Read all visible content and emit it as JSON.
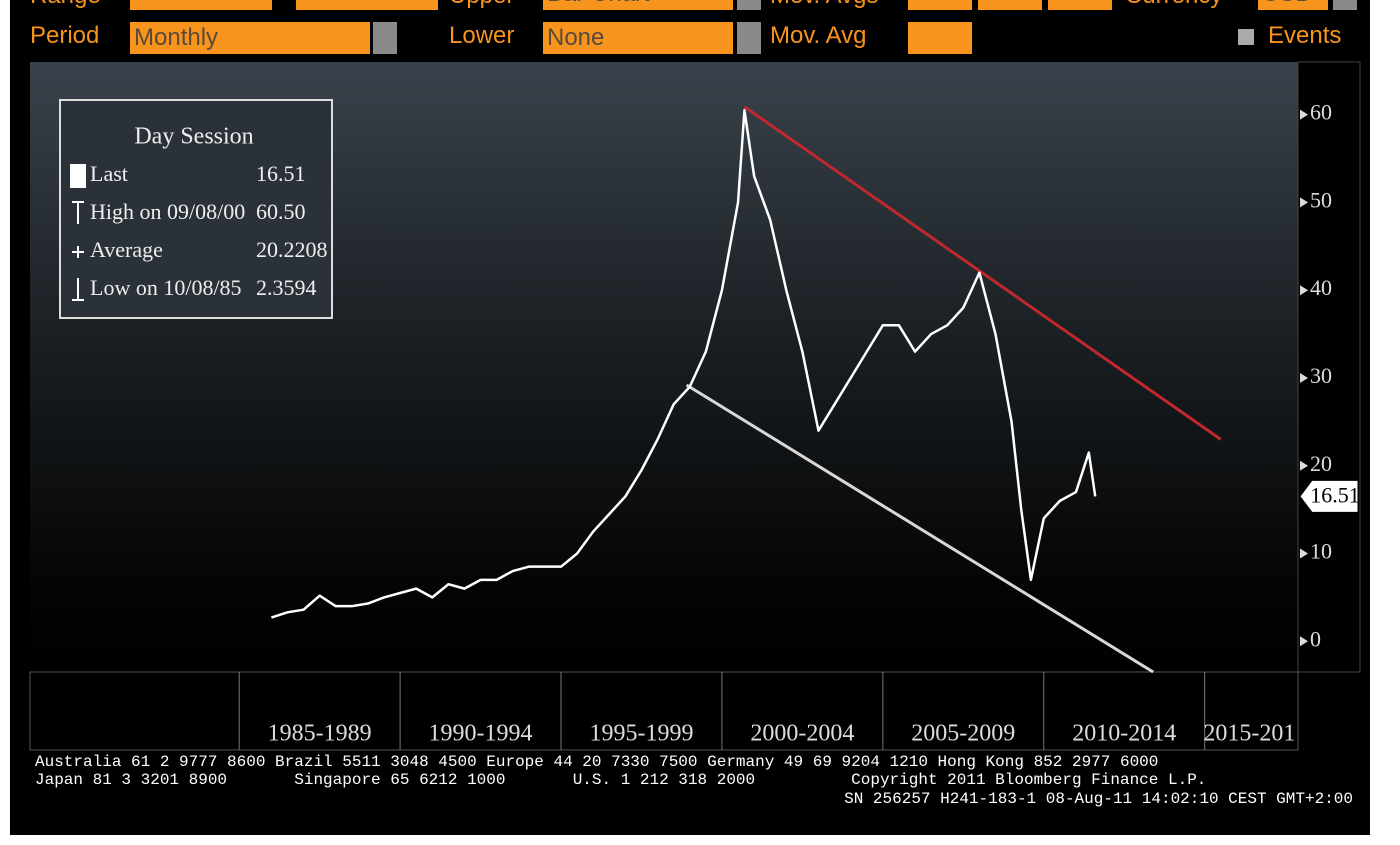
{
  "toolbar": {
    "row1": [
      "Range",
      "Upper",
      "Bar Chart",
      "Mov. Avgs",
      "Currency",
      "USD"
    ],
    "period_label": "Period",
    "period_value": "Monthly",
    "lower_label": "Lower",
    "lower_value": "None",
    "mov_avg_label": "Mov. Avg",
    "events": "Events"
  },
  "legend": {
    "title": "Day Session",
    "rows": [
      [
        "Last",
        "16.51"
      ],
      [
        "High on 09/08/00",
        "60.50"
      ],
      [
        "Average",
        "20.2208"
      ],
      [
        "Low on 10/08/85",
        "2.3594"
      ]
    ]
  },
  "chart_data": {
    "type": "line",
    "x": [
      1986.0,
      1986.5,
      1987.0,
      1987.5,
      1988.0,
      1988.5,
      1989.0,
      1989.5,
      1990.0,
      1990.5,
      1991.0,
      1991.5,
      1992.0,
      1992.5,
      1993.0,
      1993.5,
      1994.0,
      1994.5,
      1995.0,
      1995.5,
      1996.0,
      1996.5,
      1997.0,
      1997.5,
      1998.0,
      1998.5,
      1999.0,
      1999.5,
      2000.0,
      2000.5,
      2000.7,
      2001.0,
      2001.5,
      2002.0,
      2002.5,
      2003.0,
      2003.5,
      2004.0,
      2004.5,
      2005.0,
      2005.5,
      2006.0,
      2006.5,
      2007.0,
      2007.5,
      2008.0,
      2008.5,
      2009.0,
      2009.3,
      2009.6,
      2010.0,
      2010.5,
      2011.0,
      2011.4,
      2011.6
    ],
    "series": [
      {
        "color": "#ffffff",
        "values": [
          2.7,
          3.3,
          3.6,
          5.2,
          4.0,
          4.0,
          4.3,
          5.0,
          5.5,
          6.0,
          5.0,
          6.5,
          6.0,
          7.0,
          7.0,
          8.0,
          8.5,
          8.5,
          8.5,
          10,
          12.5,
          14.5,
          16.5,
          19.5,
          23,
          27,
          29,
          33,
          40,
          50,
          60.5,
          53,
          48,
          40,
          33,
          24,
          27,
          30,
          33,
          36,
          36,
          33,
          35,
          36,
          38,
          42,
          35,
          25,
          15,
          7,
          14,
          16,
          17,
          21.5,
          16.5
        ]
      }
    ],
    "xlim": [
      1978.5,
      2017.9
    ],
    "xticks": [
      {
        "value": 1985,
        "label": "1985-1989"
      },
      {
        "value": 1990,
        "label": "1990-1994"
      },
      {
        "value": 1995,
        "label": "1995-1999"
      },
      {
        "value": 2000,
        "label": "2000-2004"
      },
      {
        "value": 2005,
        "label": "2005-2009"
      },
      {
        "value": 2010,
        "label": "2010-2014"
      },
      {
        "value": 2015,
        "label": "2015-201"
      }
    ],
    "ylim": [
      -3.5,
      66
    ],
    "yticks": [
      0,
      10,
      20,
      30,
      40,
      50,
      60
    ],
    "last_value": 16.51,
    "trend_lines": [
      {
        "color": "#c0282d",
        "x": [
          2000.7,
          2015.5
        ],
        "y": [
          60.9,
          23.0
        ]
      },
      {
        "color": "#d8d8d8",
        "x": [
          1998.9,
          2013.4
        ],
        "y": [
          29.2,
          -3.5
        ]
      }
    ]
  },
  "footer": [
    "Australia 61 2 9777 8600 Brazil 5511 3048 4500 Europe 44 20 7330 7500 Germany 49 69 9204 1210 Hong Kong 852 2977 6000",
    "Japan 81 3 3201 8900       Singapore 65 6212 1000       U.S. 1 212 318 2000          Copyright 2011 Bloomberg Finance L.P.",
    "SN 256257 H241-183-1 08-Aug-11 14:02:10 CEST GMT+2:00"
  ]
}
